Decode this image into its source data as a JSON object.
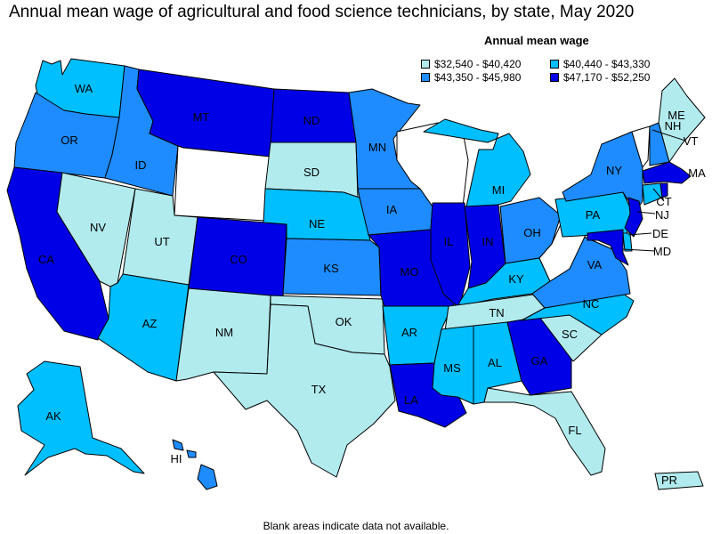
{
  "title": "Annual mean wage of agricultural and food science technicians, by state, May 2020",
  "legend": {
    "title": "Annual mean wage",
    "items": [
      {
        "label": "$32,540 - $40,420",
        "color": "#b2ebee"
      },
      {
        "label": "$43,350 - $45,980",
        "color": "#1e8cff"
      },
      {
        "label": "$40,440 - $43,330",
        "color": "#00bfff"
      },
      {
        "label": "$47,170 - $52,250",
        "color": "#0000e6"
      }
    ]
  },
  "footnote": "Blank areas indicate data not available.",
  "colors": {
    "no_data": "#ffffff",
    "tier1": "#b2ebee",
    "tier2": "#00bfff",
    "tier3": "#1e8cff",
    "tier4": "#0000e6"
  },
  "states": {
    "WA": {
      "label": "WA",
      "tier": "tier2"
    },
    "OR": {
      "label": "OR",
      "tier": "tier3"
    },
    "CA": {
      "label": "CA",
      "tier": "tier4"
    },
    "NV": {
      "label": "NV",
      "tier": "tier1"
    },
    "ID": {
      "label": "ID",
      "tier": "tier3"
    },
    "MT": {
      "label": "MT",
      "tier": "tier4"
    },
    "WY": {
      "label": "",
      "tier": "no_data"
    },
    "UT": {
      "label": "UT",
      "tier": "tier1"
    },
    "AZ": {
      "label": "AZ",
      "tier": "tier2"
    },
    "CO": {
      "label": "CO",
      "tier": "tier4"
    },
    "NM": {
      "label": "NM",
      "tier": "tier1"
    },
    "ND": {
      "label": "ND",
      "tier": "tier4"
    },
    "SD": {
      "label": "SD",
      "tier": "tier1"
    },
    "NE": {
      "label": "NE",
      "tier": "tier2"
    },
    "KS": {
      "label": "KS",
      "tier": "tier3"
    },
    "OK": {
      "label": "OK",
      "tier": "tier1"
    },
    "TX": {
      "label": "TX",
      "tier": "tier1"
    },
    "MN": {
      "label": "MN",
      "tier": "tier3"
    },
    "IA": {
      "label": "IA",
      "tier": "tier3"
    },
    "MO": {
      "label": "MO",
      "tier": "tier4"
    },
    "AR": {
      "label": "AR",
      "tier": "tier2"
    },
    "LA": {
      "label": "LA",
      "tier": "tier4"
    },
    "WI": {
      "label": "",
      "tier": "no_data"
    },
    "IL": {
      "label": "IL",
      "tier": "tier4"
    },
    "MI": {
      "label": "MI",
      "tier": "tier2"
    },
    "IN": {
      "label": "IN",
      "tier": "tier4"
    },
    "OH": {
      "label": "OH",
      "tier": "tier3"
    },
    "KY": {
      "label": "KY",
      "tier": "tier2"
    },
    "TN": {
      "label": "TN",
      "tier": "tier1"
    },
    "MS": {
      "label": "MS",
      "tier": "tier2"
    },
    "AL": {
      "label": "AL",
      "tier": "tier2"
    },
    "GA": {
      "label": "GA",
      "tier": "tier4"
    },
    "FL": {
      "label": "FL",
      "tier": "tier1"
    },
    "SC": {
      "label": "SC",
      "tier": "tier1"
    },
    "NC": {
      "label": "NC",
      "tier": "tier2"
    },
    "VA": {
      "label": "VA",
      "tier": "tier3"
    },
    "WV": {
      "label": "",
      "tier": "no_data"
    },
    "PA": {
      "label": "PA",
      "tier": "tier2"
    },
    "NY": {
      "label": "NY",
      "tier": "tier3"
    },
    "VT": {
      "label": "VT",
      "tier": "no_data"
    },
    "NH": {
      "label": "NH",
      "tier": "tier3"
    },
    "ME": {
      "label": "ME",
      "tier": "tier1"
    },
    "MA": {
      "label": "MA",
      "tier": "tier4"
    },
    "CT": {
      "label": "CT",
      "tier": "tier2"
    },
    "RI": {
      "label": "",
      "tier": "tier4"
    },
    "NJ": {
      "label": "NJ",
      "tier": "tier4"
    },
    "DE": {
      "label": "DE",
      "tier": "tier2"
    },
    "MD": {
      "label": "MD",
      "tier": "tier4"
    },
    "AK": {
      "label": "AK",
      "tier": "tier2"
    },
    "HI": {
      "label": "HI",
      "tier": "tier3"
    },
    "PR": {
      "label": "PR",
      "tier": "tier1"
    }
  }
}
